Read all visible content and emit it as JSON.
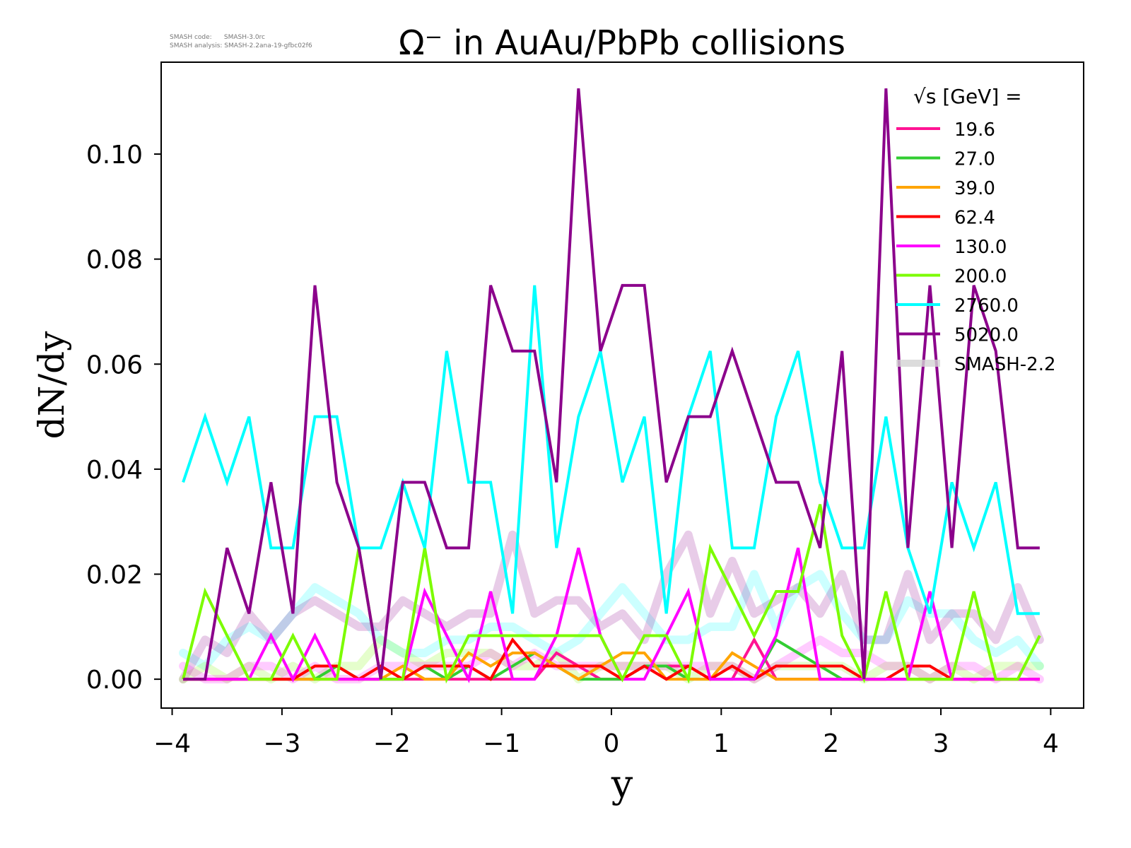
{
  "meta": {
    "code_line": "SMASH code:      SMASH-3.0rc",
    "analysis_line": "SMASH analysis: SMASH-2.2ana-19-gfbc02f6"
  },
  "chart_data": {
    "type": "line",
    "title": "Ω⁻ in AuAu/PbPb collisions",
    "xlabel": "y",
    "ylabel": "dN/dy",
    "xlim": [
      -4.1,
      4.3
    ],
    "ylim": [
      -0.0055,
      0.1175
    ],
    "xticks": [
      -4,
      -3,
      -2,
      -1,
      0,
      1,
      2,
      3,
      4
    ],
    "xtick_labels": [
      "−4",
      "−3",
      "−2",
      "−1",
      "0",
      "1",
      "2",
      "3",
      "4"
    ],
    "yticks": [
      0.0,
      0.02,
      0.04,
      0.06,
      0.08,
      0.1
    ],
    "ytick_labels": [
      "0.00",
      "0.02",
      "0.04",
      "0.06",
      "0.08",
      "0.10"
    ],
    "legend_title": "√s  [GeV] =",
    "legend_placement": "top-right",
    "x": [
      -3.9,
      -3.7,
      -3.5,
      -3.3,
      -3.1,
      -2.9,
      -2.7,
      -2.5,
      -2.3,
      -2.1,
      -1.9,
      -1.7,
      -1.5,
      -1.3,
      -1.1,
      -0.9,
      -0.7,
      -0.5,
      -0.3,
      -0.1,
      0.1,
      0.3,
      0.5,
      0.7,
      0.9,
      1.1,
      1.3,
      1.5,
      1.7,
      1.9,
      2.1,
      2.3,
      2.5,
      2.7,
      2.9,
      3.1,
      3.3,
      3.5,
      3.7,
      3.9
    ],
    "series": [
      {
        "name": "19.6",
        "color": "#ff1493",
        "values": [
          0,
          0,
          0,
          0,
          0,
          0,
          0,
          0,
          0,
          0,
          0,
          0,
          0,
          0,
          0,
          0,
          0,
          0.005,
          0.0025,
          0,
          0,
          0.0025,
          0.0025,
          0.0025,
          0,
          0,
          0.0075,
          0,
          0,
          0,
          0,
          0,
          0,
          0,
          0,
          0,
          0,
          0,
          0,
          0
        ]
      },
      {
        "name": "27.0",
        "color": "#32cd32",
        "values": [
          0,
          0,
          0,
          0,
          0,
          0,
          0,
          0.0025,
          0,
          0,
          0,
          0.0025,
          0,
          0.0025,
          0,
          0.0025,
          0.005,
          0.0025,
          0,
          0,
          0,
          0.0025,
          0.0025,
          0,
          0,
          0,
          0,
          0.0075,
          0.005,
          0.0025,
          0,
          0,
          0,
          0,
          0,
          0,
          0,
          0,
          0,
          0
        ]
      },
      {
        "name": "39.0",
        "color": "#ffa500",
        "values": [
          0,
          0,
          0,
          0,
          0,
          0,
          0,
          0,
          0,
          0,
          0.0025,
          0,
          0,
          0.005,
          0.0025,
          0.005,
          0.005,
          0.0025,
          0,
          0.0025,
          0.005,
          0.005,
          0,
          0,
          0,
          0.005,
          0.0025,
          0,
          0,
          0,
          0,
          0,
          0,
          0,
          0,
          0,
          0,
          0,
          0,
          0
        ]
      },
      {
        "name": "62.4",
        "color": "#ff0000",
        "values": [
          0,
          0,
          0,
          0,
          0,
          0,
          0.0025,
          0.0025,
          0,
          0.0025,
          0,
          0.0025,
          0.0025,
          0.0025,
          0,
          0.0075,
          0.0025,
          0.0025,
          0.0025,
          0.0025,
          0,
          0.0025,
          0,
          0.0025,
          0,
          0.0025,
          0,
          0.0025,
          0.0025,
          0.0025,
          0.0025,
          0,
          0,
          0.0025,
          0.0025,
          0,
          0,
          0,
          0,
          0
        ]
      },
      {
        "name": "130.0",
        "color": "#ff00ff",
        "values": [
          0,
          0,
          0,
          0,
          0.0083,
          0,
          0.0083,
          0,
          0,
          0,
          0,
          0.0167,
          0.0083,
          0,
          0.0167,
          0,
          0,
          0.0083,
          0.025,
          0.0083,
          0,
          0,
          0.0083,
          0.0167,
          0,
          0,
          0,
          0.0083,
          0.025,
          0,
          0,
          0,
          0,
          0,
          0.0167,
          0,
          0,
          0,
          0,
          0
        ]
      },
      {
        "name": "200.0",
        "color": "#7cfc00",
        "values": [
          0,
          0.0167,
          0.0083,
          0,
          0,
          0.0083,
          0,
          0,
          0.025,
          0,
          0,
          0.025,
          0,
          0.0083,
          0.0083,
          0.0083,
          0.0083,
          0.0083,
          0.0083,
          0.0083,
          0,
          0.0083,
          0.0083,
          0,
          0.025,
          0.0167,
          0.0083,
          0.0167,
          0.0167,
          0.0333,
          0.0083,
          0,
          0.0167,
          0,
          0,
          0,
          0.0167,
          0,
          0,
          0.0083
        ]
      },
      {
        "name": "2760.0",
        "color": "#00ffff",
        "values": [
          0.0375,
          0.05,
          0.0375,
          0.05,
          0.025,
          0.025,
          0.05,
          0.05,
          0.025,
          0.025,
          0.0375,
          0.025,
          0.0625,
          0.0375,
          0.0375,
          0.0125,
          0.075,
          0.025,
          0.05,
          0.0625,
          0.0375,
          0.05,
          0.0125,
          0.05,
          0.0625,
          0.025,
          0.025,
          0.05,
          0.0625,
          0.0375,
          0.025,
          0.025,
          0.05,
          0.025,
          0.0125,
          0.0375,
          0.025,
          0.0375,
          0.0125,
          0.0125
        ]
      },
      {
        "name": "5020.0",
        "color": "#8b008b",
        "values": [
          0,
          0,
          0.025,
          0.0125,
          0.0375,
          0.0125,
          0.075,
          0.0375,
          0.025,
          0,
          0.0375,
          0.0375,
          0.025,
          0.025,
          0.075,
          0.0625,
          0.0625,
          0.0375,
          0.1125,
          0.0625,
          0.075,
          0.075,
          0.0375,
          0.05,
          0.05,
          0.0625,
          0.05,
          0.0375,
          0.0375,
          0.025,
          0.0625,
          0,
          0.1125,
          0.025,
          0.075,
          0.025,
          0.075,
          0.0625,
          0.025,
          0.025
        ]
      }
    ],
    "reference_label": "SMASH-2.2",
    "reference_color": "#d3d3d3",
    "reference_series": [
      {
        "name": "2760.0",
        "color": "#00ffff",
        "values": [
          0.005,
          0.0025,
          0.0075,
          0.01,
          0.0075,
          0.0125,
          0.0175,
          0.015,
          0.0125,
          0.0075,
          0.005,
          0.005,
          0.0075,
          0.0075,
          0.01,
          0.01,
          0.0075,
          0.005,
          0.0075,
          0.0125,
          0.0175,
          0.0125,
          0.0075,
          0.0075,
          0.01,
          0.01,
          0.02,
          0.01,
          0.0175,
          0.02,
          0.0125,
          0.0075,
          0.0075,
          0.015,
          0.0125,
          0.0125,
          0.0075,
          0.005,
          0.0075,
          0.0025
        ]
      },
      {
        "name": "5020.0",
        "color": "#8b008b",
        "values": [
          0,
          0.0075,
          0.005,
          0.0125,
          0.0075,
          0.0125,
          0.015,
          0.0125,
          0.01,
          0.01,
          0.015,
          0.0125,
          0.01,
          0.0125,
          0.0125,
          0.0275,
          0.0125,
          0.015,
          0.015,
          0.01,
          0.0125,
          0.0075,
          0.02,
          0.0275,
          0.0125,
          0.0225,
          0.0125,
          0.015,
          0.0175,
          0.0125,
          0.02,
          0.0075,
          0.0075,
          0.02,
          0.0075,
          0.0125,
          0.0125,
          0.0075,
          0.0175,
          0.0075
        ]
      },
      {
        "name": "200.0",
        "color": "#7cfc00",
        "values": [
          0,
          0.0025,
          0,
          0.0025,
          0,
          0.0025,
          0,
          0.0025,
          0.0025,
          0.0075,
          0.005,
          0.0025,
          0.005,
          0.005,
          0.005,
          0.0025,
          0.0025,
          0.005,
          0,
          0.0025,
          0.0025,
          0.0025,
          0.0025,
          0,
          0.0025,
          0.0025,
          0,
          0.0025,
          0.0025,
          0.0025,
          0.0025,
          0,
          0.0025,
          0.0025,
          0,
          0.0025,
          0,
          0.0025,
          0.0025,
          0.0025
        ]
      },
      {
        "name": "130.0",
        "color": "#ff00ff",
        "values": [
          0.0025,
          0,
          0,
          0.0025,
          0.0025,
          0,
          0.0025,
          0,
          0,
          0.0025,
          0.0025,
          0.0025,
          0.0025,
          0.0025,
          0.005,
          0.0025,
          0.005,
          0.0025,
          0.0025,
          0.0025,
          0.0025,
          0.0025,
          0.0025,
          0.0025,
          0.0025,
          0.0025,
          0,
          0.0025,
          0.005,
          0.0075,
          0.005,
          0.005,
          0.0025,
          0.0025,
          0,
          0.0025,
          0.0025,
          0,
          0.0025,
          0
        ]
      }
    ]
  }
}
